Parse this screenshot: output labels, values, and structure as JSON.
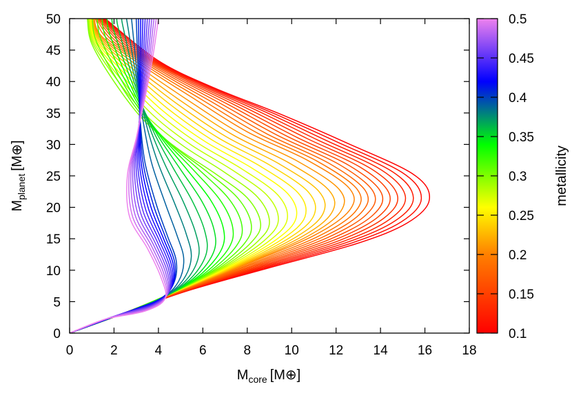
{
  "chart_data": {
    "type": "line",
    "title": "",
    "xlabel": {
      "base": "M",
      "sub": "core",
      "unit": "[M⊕]"
    },
    "ylabel": {
      "base": "M",
      "sub": "planet",
      "unit": "[M⊕]"
    },
    "xlim": [
      0,
      18
    ],
    "ylim": [
      0,
      50
    ],
    "x_ticks": [
      "0",
      "2",
      "4",
      "6",
      "8",
      "10",
      "12",
      "14",
      "16",
      "18"
    ],
    "y_ticks": [
      "0",
      "5",
      "10",
      "15",
      "20",
      "25",
      "30",
      "35",
      "40",
      "45",
      "50"
    ],
    "colorbar": {
      "label": "metallicity",
      "range": [
        0.1,
        0.5
      ],
      "ticks": [
        "0.1",
        "0.15",
        "0.2",
        "0.25",
        "0.3",
        "0.35",
        "0.4",
        "0.45",
        "0.5"
      ],
      "colors": [
        "#ff0000",
        "#ff8000",
        "#ffff00",
        "#00ff00",
        "#0000ff",
        "#ee82ee"
      ]
    },
    "series_description": "one curve per metallicity from 0.1 to 0.5 in steps of 0.01",
    "series": [
      {
        "metallicity": 0.1,
        "points": [
          [
            0,
            0
          ],
          [
            2.6,
            3.3
          ],
          [
            5.2,
            6.6
          ],
          [
            8.8,
            10.2
          ],
          [
            12.9,
            14.2
          ],
          [
            15.2,
            17.5
          ],
          [
            16.2,
            21.2
          ],
          [
            15.5,
            25.2
          ],
          [
            12.5,
            30.2
          ],
          [
            9.5,
            34.8
          ],
          [
            6.5,
            39.0
          ],
          [
            4.0,
            43.3
          ],
          [
            1.6,
            50
          ]
        ]
      },
      {
        "metallicity": 0.2,
        "points": [
          [
            0,
            0
          ],
          [
            2.6,
            3.4
          ],
          [
            5.0,
            6.8
          ],
          [
            8.0,
            11.0
          ],
          [
            11.0,
            15.5
          ],
          [
            12.6,
            19.5
          ],
          [
            12.6,
            23.0
          ],
          [
            10.7,
            27.5
          ],
          [
            8.0,
            32.0
          ],
          [
            5.5,
            37.5
          ],
          [
            3.5,
            42.0
          ],
          [
            1.5,
            47.0
          ],
          [
            1.1,
            50
          ]
        ]
      },
      {
        "metallicity": 0.3,
        "points": [
          [
            0,
            0
          ],
          [
            2.7,
            3.5
          ],
          [
            4.9,
            6.9
          ],
          [
            6.8,
            10.5
          ],
          [
            8.2,
            14.5
          ],
          [
            8.6,
            17.5
          ],
          [
            8.0,
            21.5
          ],
          [
            6.5,
            25.5
          ],
          [
            4.8,
            29.5
          ],
          [
            3.3,
            34.0
          ],
          [
            2.0,
            40.0
          ],
          [
            1.0,
            46.0
          ],
          [
            0.8,
            50
          ]
        ]
      },
      {
        "metallicity": 0.4,
        "points": [
          [
            0,
            0
          ],
          [
            2.7,
            3.5
          ],
          [
            4.1,
            5.5
          ],
          [
            4.7,
            8.0
          ],
          [
            4.8,
            11.5
          ],
          [
            4.4,
            15.5
          ],
          [
            3.9,
            20.5
          ],
          [
            3.4,
            27.0
          ],
          [
            3.2,
            33.0
          ],
          [
            3.1,
            39.0
          ],
          [
            3.05,
            45.0
          ],
          [
            3.0,
            50
          ]
        ]
      },
      {
        "metallicity": 0.5,
        "points": [
          [
            0,
            0
          ],
          [
            1.6,
            2.2
          ],
          [
            3.4,
            3.5
          ],
          [
            4.3,
            5.5
          ],
          [
            4.1,
            9.0
          ],
          [
            3.5,
            13.5
          ],
          [
            2.7,
            18.5
          ],
          [
            2.6,
            25.0
          ],
          [
            3.0,
            31.0
          ],
          [
            3.4,
            37.5
          ],
          [
            3.75,
            44.0
          ],
          [
            4.0,
            50
          ]
        ]
      }
    ]
  }
}
